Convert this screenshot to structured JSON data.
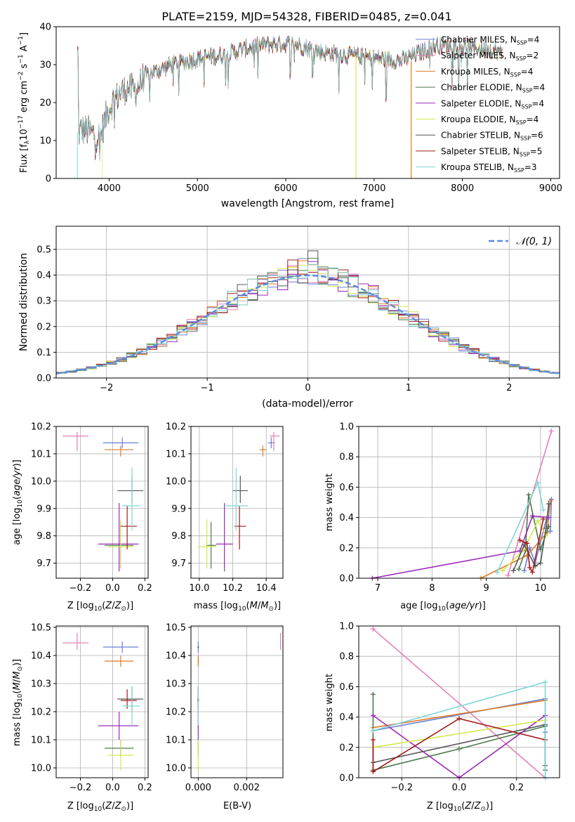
{
  "chart_data": [
    {
      "type": "line",
      "title": "PLATE=2159, MJD=54328, FIBERID=0485, z=0.041",
      "xlabel": "wavelength [Angstrom, rest frame]",
      "ylabel": "Flux [f_λ 10^-17 erg cm^-2 s^-1 A^-1]",
      "xlim": [
        3400,
        9100
      ],
      "ylim": [
        0,
        40
      ],
      "xticks": [
        "4000",
        "5000",
        "6000",
        "7000",
        "8000",
        "9000"
      ],
      "yticks": [
        "0",
        "10",
        "20",
        "30",
        "40"
      ],
      "grid": false,
      "legend_position": "top-right",
      "series": [
        {
          "name": "Chabrier MILES, N_SSP=4",
          "color": "#6a7fd6"
        },
        {
          "name": "Salpeter MILES, N_SSP=2",
          "color": "#e57fb5"
        },
        {
          "name": "Kroupa MILES, N_SSP=4",
          "color": "#e07b26"
        },
        {
          "name": "Chabrier ELODIE, N_SSP=4",
          "color": "#4a7a4a"
        },
        {
          "name": "Salpeter ELODIE, N_SSP=4",
          "color": "#9b2ab8"
        },
        {
          "name": "Kroupa ELODIE, N_SSP=4",
          "color": "#d6e84e"
        },
        {
          "name": "Chabrier STELIB, N_SSP=6",
          "color": "#555555"
        },
        {
          "name": "Salpeter STELIB, N_SSP=5",
          "color": "#a31a1a"
        },
        {
          "name": "Kroupa STELIB, N_SSP=3",
          "color": "#7fd6d6"
        }
      ],
      "spectrum_trend": {
        "x": [
          3650,
          3700,
          3800,
          3900,
          4000,
          4100,
          4200,
          4300,
          4400,
          4500,
          4700,
          4900,
          5100,
          5300,
          5500,
          5700,
          5900,
          6100,
          6300,
          6500,
          6700,
          6900,
          7100,
          7300,
          7500,
          7700,
          7900,
          8100,
          8300,
          8450
        ],
        "y": [
          12,
          13,
          12,
          11,
          19,
          22,
          24,
          23,
          27,
          28,
          30,
          31,
          32,
          32.5,
          34,
          35,
          35.5,
          35.5,
          34,
          33,
          32.5,
          32,
          31.5,
          31,
          33,
          35,
          35,
          34.5,
          34,
          33
        ]
      }
    },
    {
      "type": "bar",
      "xlabel": "(data-model)/error",
      "ylabel": "Normed distribution",
      "xlim": [
        -2.5,
        2.5
      ],
      "ylim": [
        0,
        0.59
      ],
      "xticks": [
        "−2",
        "−1",
        "0",
        "1",
        "2"
      ],
      "yticks": [
        "0.0",
        "0.1",
        "0.2",
        "0.3",
        "0.4",
        "0.5"
      ],
      "grid": true,
      "legend_position": "top-right",
      "reference_curve": "𝒩(0, 1)",
      "bin_width": 0.1
    },
    {
      "type": "scatter",
      "xlabel": "Z [log10(Z/Z⊙)]",
      "ylabel": "age [log10(age/yr)]",
      "xlim": [
        -0.35,
        0.22
      ],
      "ylim": [
        9.645,
        10.2
      ],
      "xticks": [
        "−0.2",
        "0.0",
        "0.2"
      ],
      "yticks": [
        "9.7",
        "9.8",
        "9.9",
        "10.0",
        "10.1",
        "10.2"
      ],
      "grid": true
    },
    {
      "type": "scatter",
      "xlabel": "mass [log10(M/M⊙)]",
      "xlim": [
        9.95,
        10.5
      ],
      "ylim": [
        9.645,
        10.2
      ],
      "xticks": [
        "10.0",
        "10.2",
        "10.4"
      ],
      "yticks": [
        "9.7",
        "9.8",
        "9.9",
        "10.0",
        "10.1",
        "10.2"
      ],
      "grid": true
    },
    {
      "type": "line",
      "xlabel": "age [log10(age/yr)]",
      "ylabel": "mass weight",
      "xlim": [
        6.65,
        10.35
      ],
      "ylim": [
        0,
        1.0
      ],
      "xticks": [
        "7",
        "8",
        "9",
        "10"
      ],
      "yticks": [
        "0.0",
        "0.2",
        "0.4",
        "0.6",
        "0.8",
        "1.0"
      ],
      "grid": true
    },
    {
      "type": "scatter",
      "xlabel": "Z [log10(Z/Z⊙)]",
      "ylabel": "mass [log10(M/M⊙)]",
      "xlim": [
        -0.35,
        0.22
      ],
      "ylim": [
        9.965,
        10.505
      ],
      "xticks": [
        "−0.2",
        "0.0",
        "0.2"
      ],
      "yticks": [
        "10.0",
        "10.1",
        "10.2",
        "10.3",
        "10.4",
        "10.5"
      ],
      "grid": true
    },
    {
      "type": "scatter",
      "xlabel": "E(B-V)",
      "xlim": [
        -0.0003,
        0.0035
      ],
      "ylim": [
        9.965,
        10.505
      ],
      "xticks": [
        "0.000",
        "0.002"
      ],
      "yticks": [
        "10.0",
        "10.1",
        "10.2",
        "10.3",
        "10.4",
        "10.5"
      ],
      "grid": true
    },
    {
      "type": "line",
      "xlabel": "Z [log10(Z/Z⊙)]",
      "ylabel": "mass weight",
      "xlim": [
        -0.35,
        0.35
      ],
      "ylim": [
        0,
        1.0
      ],
      "xticks": [
        "−0.2",
        "0.0",
        "0.2"
      ],
      "yticks": [
        "0.0",
        "0.2",
        "0.4",
        "0.6",
        "0.8",
        "1.0"
      ],
      "grid": true
    }
  ],
  "fits": [
    {
      "Z": 0.06,
      "Z_lo": -0.06,
      "Z_hi": 0.16,
      "age": 10.14,
      "age_lo": 10.12,
      "age_hi": 10.16,
      "mass": 10.43,
      "mass_lo": 10.41,
      "mass_hi": 10.45,
      "ebv": 0.0,
      "ebv_err": 5e-05
    },
    {
      "Z": -0.22,
      "Z_hi": -0.15,
      "Z_lo": -0.31,
      "age": 10.165,
      "age_lo": 10.11,
      "age_hi": 10.18,
      "mass": 10.445,
      "mass_lo": 10.42,
      "mass_hi": 10.48,
      "ebv": 0.0034,
      "ebv_err": 0.0
    },
    {
      "Z": 0.05,
      "Z_lo": -0.05,
      "Z_hi": 0.13,
      "age": 10.115,
      "age_lo": 10.09,
      "age_hi": 10.13,
      "mass": 10.38,
      "mass_lo": 10.36,
      "mass_hi": 10.4,
      "ebv": 0.0,
      "ebv_err": 3e-05
    },
    {
      "Z": 0.05,
      "Z_lo": -0.05,
      "Z_hi": 0.13,
      "age": 9.765,
      "age_lo": 9.68,
      "age_hi": 9.85,
      "mass": 10.07,
      "mass_lo": 10.04,
      "mass_hi": 10.1,
      "ebv": 0.0,
      "ebv_err": 2e-05
    },
    {
      "Z": 0.04,
      "Z_lo": -0.09,
      "Z_hi": 0.16,
      "age": 9.77,
      "age_lo": 9.67,
      "age_hi": 9.92,
      "mass": 10.15,
      "mass_lo": 10.1,
      "mass_hi": 10.2,
      "ebv": 0.0,
      "ebv_err": 3e-05
    },
    {
      "Z": 0.05,
      "Z_lo": -0.03,
      "Z_hi": 0.13,
      "age": 9.76,
      "age_lo": 9.68,
      "age_hi": 9.86,
      "mass": 10.045,
      "mass_lo": 9.99,
      "mass_hi": 10.1,
      "ebv": 0.0,
      "ebv_err": 3e-05
    },
    {
      "Z": 0.12,
      "Z_lo": 0.03,
      "Z_hi": 0.19,
      "age": 9.965,
      "age_lo": 9.92,
      "age_hi": 10.02,
      "mass": 10.245,
      "mass_lo": 10.2,
      "mass_hi": 10.29,
      "ebv": 0.0,
      "ebv_err": 3e-05
    },
    {
      "Z": 0.09,
      "Z_lo": 0.05,
      "Z_hi": 0.15,
      "age": 9.835,
      "age_lo": 9.75,
      "age_hi": 9.91,
      "mass": 10.24,
      "mass_lo": 10.21,
      "mass_hi": 10.28,
      "ebv": 0.0,
      "ebv_err": 4e-05
    },
    {
      "Z": 0.12,
      "Z_lo": 0.06,
      "Z_hi": 0.17,
      "age": 9.91,
      "age_lo": 9.82,
      "age_hi": 10.05,
      "mass": 10.22,
      "mass_lo": 10.15,
      "mass_hi": 10.29,
      "ebv": 0.0,
      "ebv_err": 2e-05
    }
  ],
  "weights_age": [
    [
      [
        9.7,
        0.05
      ],
      [
        9.8,
        0.2
      ],
      [
        9.9,
        0.1
      ],
      [
        10.2,
        0.52
      ],
      [
        10.18,
        0.31
      ]
    ],
    [
      [
        9.4,
        0.02
      ],
      [
        10.2,
        0.97
      ]
    ],
    [
      [
        8.9,
        0.0
      ],
      [
        9.75,
        0.15
      ],
      [
        10.12,
        0.3
      ],
      [
        10.18,
        0.51
      ]
    ],
    [
      [
        9.6,
        0.06
      ],
      [
        9.72,
        0.18
      ],
      [
        9.78,
        0.55
      ],
      [
        10.0,
        0.19
      ],
      [
        10.15,
        0.34
      ]
    ],
    [
      [
        6.9,
        0.0
      ],
      [
        9.62,
        0.18
      ],
      [
        9.85,
        0.41
      ],
      [
        10.15,
        0.4
      ]
    ],
    [
      [
        9.3,
        0.05
      ],
      [
        9.7,
        0.19
      ],
      [
        9.95,
        0.38
      ],
      [
        10.1,
        0.28
      ]
    ],
    [
      [
        9.5,
        0.05
      ],
      [
        9.7,
        0.22
      ],
      [
        9.9,
        0.08
      ],
      [
        10.0,
        0.1
      ],
      [
        10.1,
        0.33
      ],
      [
        10.15,
        0.49
      ]
    ],
    [
      [
        9.62,
        0.25
      ],
      [
        9.75,
        0.23
      ],
      [
        9.8,
        0.07
      ],
      [
        9.85,
        0.04
      ],
      [
        10.05,
        0.39
      ]
    ],
    [
      [
        9.2,
        0.04
      ],
      [
        9.95,
        0.63
      ],
      [
        10.05,
        0.45
      ]
    ]
  ],
  "weights_z": [
    [
      [
        -0.3,
        0.31
      ],
      [
        0.3,
        0.52
      ],
      [
        0.3,
        0.3
      ]
    ],
    [
      [
        -0.3,
        0.98
      ],
      [
        0.3,
        0.0
      ]
    ],
    [
      [
        -0.3,
        0.33
      ],
      [
        0.3,
        0.51
      ]
    ],
    [
      [
        -0.3,
        0.55
      ],
      [
        -0.3,
        0.05
      ],
      [
        0.0,
        0.19
      ],
      [
        0.3,
        0.34
      ],
      [
        0.3,
        0.05
      ]
    ],
    [
      [
        -0.3,
        0.41
      ],
      [
        0.0,
        0.0
      ],
      [
        0.3,
        0.41
      ]
    ],
    [
      [
        -0.3,
        0.2
      ],
      [
        0.3,
        0.38
      ]
    ],
    [
      [
        -0.3,
        0.1
      ],
      [
        0.3,
        0.35
      ],
      [
        0.3,
        0.08
      ]
    ],
    [
      [
        -0.3,
        0.25
      ],
      [
        -0.3,
        0.04
      ],
      [
        0.0,
        0.39
      ],
      [
        0.3,
        0.25
      ]
    ],
    [
      [
        -0.3,
        0.31
      ],
      [
        0.3,
        0.63
      ],
      [
        0.3,
        0.0
      ]
    ]
  ]
}
